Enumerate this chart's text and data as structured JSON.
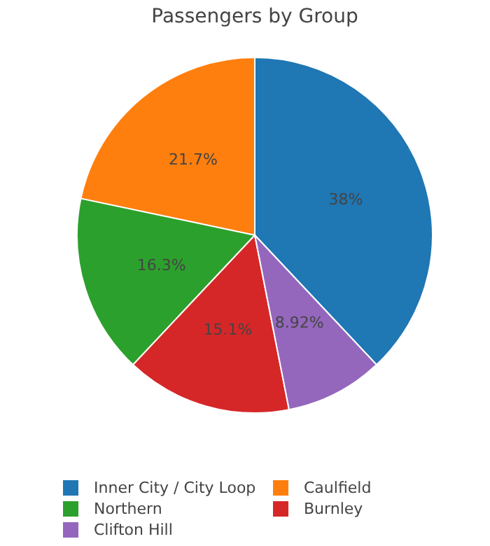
{
  "chart_data": {
    "type": "pie",
    "title": "Passengers by Group",
    "categories": [
      "Inner City / City Loop",
      "Caulfield",
      "Northern",
      "Burnley",
      "Clifton Hill"
    ],
    "values": [
      38,
      21.7,
      16.3,
      15.1,
      8.92
    ],
    "colors": [
      "#1f77b4",
      "#ff7f0e",
      "#2ca02c",
      "#d62728",
      "#9467bd"
    ],
    "value_labels": [
      "38%",
      "21.7%",
      "16.3%",
      "15.1%",
      "8.92%"
    ],
    "legend": "bottom"
  }
}
